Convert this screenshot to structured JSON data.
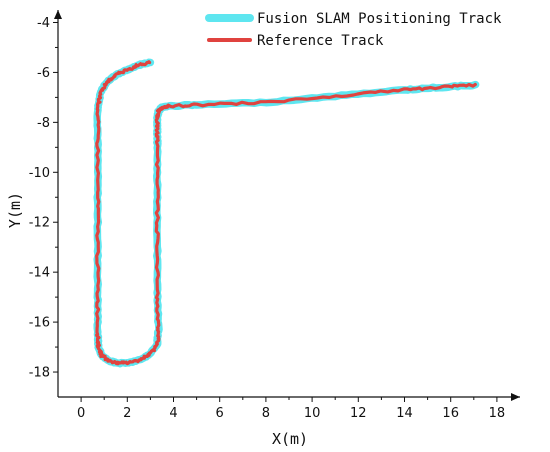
{
  "chart_data": {
    "type": "line",
    "title": "",
    "xlabel": "X(m)",
    "ylabel": "Y(m)",
    "xlim": [
      -1,
      19
    ],
    "ylim": [
      -19,
      -3.5
    ],
    "x_ticks": [
      0,
      2,
      4,
      6,
      8,
      10,
      12,
      14,
      16,
      18
    ],
    "y_ticks": [
      -4,
      -6,
      -8,
      -10,
      -12,
      -14,
      -16,
      -18
    ],
    "legend_position": "top-right",
    "grid": false,
    "path": {
      "x": [
        3.0,
        2.5,
        2.0,
        1.5,
        1.1,
        0.85,
        0.72,
        0.72,
        0.72,
        0.72,
        0.72,
        0.72,
        0.75,
        0.9,
        1.2,
        1.6,
        2.1,
        2.6,
        3.0,
        3.3,
        3.35,
        3.3,
        3.3,
        3.3,
        3.3,
        3.3,
        3.3,
        3.35,
        3.5,
        3.8,
        5,
        8,
        11,
        14,
        15.5,
        17.1
      ],
      "y": [
        -5.6,
        -5.7,
        -5.9,
        -6.1,
        -6.4,
        -6.8,
        -7.5,
        -9,
        -11,
        -13,
        -15,
        -16.5,
        -17.0,
        -17.35,
        -17.55,
        -17.65,
        -17.62,
        -17.5,
        -17.25,
        -16.9,
        -16.3,
        -15,
        -13,
        -11,
        -9,
        -8.2,
        -7.8,
        -7.55,
        -7.4,
        -7.35,
        -7.3,
        -7.2,
        -6.95,
        -6.7,
        -6.6,
        -6.5
      ]
    },
    "series": [
      {
        "name": "Fusion SLAM Positioning Track",
        "color": "#5ee6f0"
      },
      {
        "name": "Reference Track",
        "color": "#e0433f"
      }
    ]
  }
}
